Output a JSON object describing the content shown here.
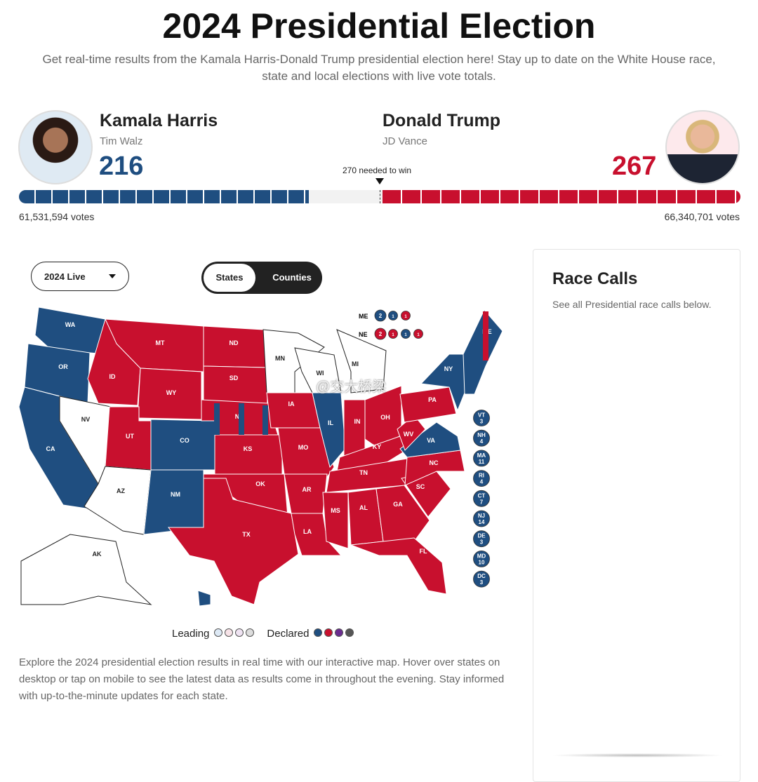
{
  "header": {
    "title": "2024 Presidential Election",
    "subtitle": "Get real-time results from the Kamala Harris-Donald Trump presidential election here! Stay up to date on the White House race, state and local elections with live vote totals."
  },
  "candidates": {
    "dem": {
      "name": "Kamala Harris",
      "running_mate": "Tim Walz",
      "electoral_votes": "216",
      "popular_votes": "61,531,594 votes",
      "color": "#1f4e80"
    },
    "rep": {
      "name": "Donald Trump",
      "running_mate": "JD Vance",
      "electoral_votes": "267",
      "popular_votes": "66,340,701 votes",
      "color": "#c8102e"
    }
  },
  "threshold_label": "270 needed to win",
  "controls": {
    "year_select": "2024 Live",
    "view_toggle": [
      "States",
      "Counties"
    ],
    "active_view": "States"
  },
  "split_votes": {
    "ME": {
      "label": "ME",
      "dots": [
        [
          "2",
          "D"
        ],
        [
          "1",
          "D"
        ],
        [
          "1",
          "R"
        ]
      ]
    },
    "NE": {
      "label": "NE",
      "dots": [
        [
          "2",
          "R"
        ],
        [
          "1",
          "R"
        ],
        [
          "1",
          "D"
        ],
        [
          "1",
          "R"
        ]
      ]
    }
  },
  "small_states": [
    [
      "VT",
      "3"
    ],
    [
      "NH",
      "4"
    ],
    [
      "MA",
      "11"
    ],
    [
      "RI",
      "4"
    ],
    [
      "CT",
      "7"
    ],
    [
      "NJ",
      "14"
    ],
    [
      "DE",
      "3"
    ],
    [
      "MD",
      "10"
    ],
    [
      "DC",
      "3"
    ]
  ],
  "states": {
    "WA": "D",
    "OR": "D",
    "CA": "D",
    "NV": "U",
    "ID": "R",
    "MT": "R",
    "WY": "R",
    "UT": "R",
    "AZ": "U",
    "CO": "D",
    "NM": "D",
    "ND": "R",
    "SD": "R",
    "NE": "R",
    "KS": "R",
    "OK": "R",
    "TX": "R",
    "MN": "U",
    "IA": "R",
    "MO": "R",
    "AR": "R",
    "LA": "R",
    "WI": "U",
    "IL": "D",
    "MI": "U",
    "IN": "R",
    "OH": "R",
    "KY": "R",
    "TN": "R",
    "MS": "R",
    "AL": "R",
    "GA": "R",
    "FL": "R",
    "SC": "R",
    "NC": "R",
    "VA": "D",
    "WV": "R",
    "PA": "R",
    "NY": "D",
    "ME": "D",
    "AK": "U",
    "HI": "D"
  },
  "legend": {
    "leading": "Leading",
    "declared": "Declared",
    "leading_colors": [
      "#dde9f5",
      "#f7e3e8",
      "#efe3f2",
      "#dddddd"
    ],
    "declared_colors": [
      "#1f4e80",
      "#c8102e",
      "#6a2c8f",
      "#555555"
    ]
  },
  "description": "Explore the 2024 presidential election results in real time with our interactive map. Hover over states on desktop or tap on mobile to see the latest data as results come in throughout the evening. Stay informed with up-to-the-minute updates for each state.",
  "race_calls": {
    "title": "Race Calls",
    "subtitle": "See all Presidential race calls below."
  },
  "watermark": "@交大桥梁"
}
